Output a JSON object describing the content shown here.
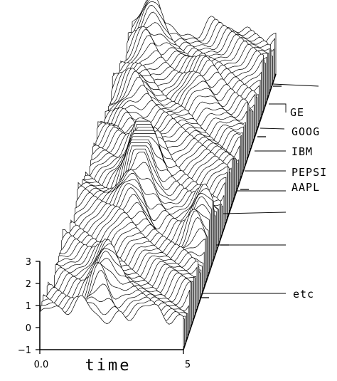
{
  "chart_data": {
    "type": "line",
    "style": "3d-waterfall",
    "xlabel": "time",
    "x_ticks": [
      "0.0",
      "5"
    ],
    "xlim": [
      0,
      5
    ],
    "y_ticks": [
      "3",
      "2",
      "1",
      "0",
      "−1"
    ],
    "ylim": [
      -1,
      3
    ],
    "series_labels": [
      "GE",
      "GOOG",
      "IBM",
      "PEPSI",
      "AAPL",
      "etc"
    ],
    "series_count": 90,
    "colors": {
      "line": "#000000",
      "fill": "#ffffff"
    }
  }
}
